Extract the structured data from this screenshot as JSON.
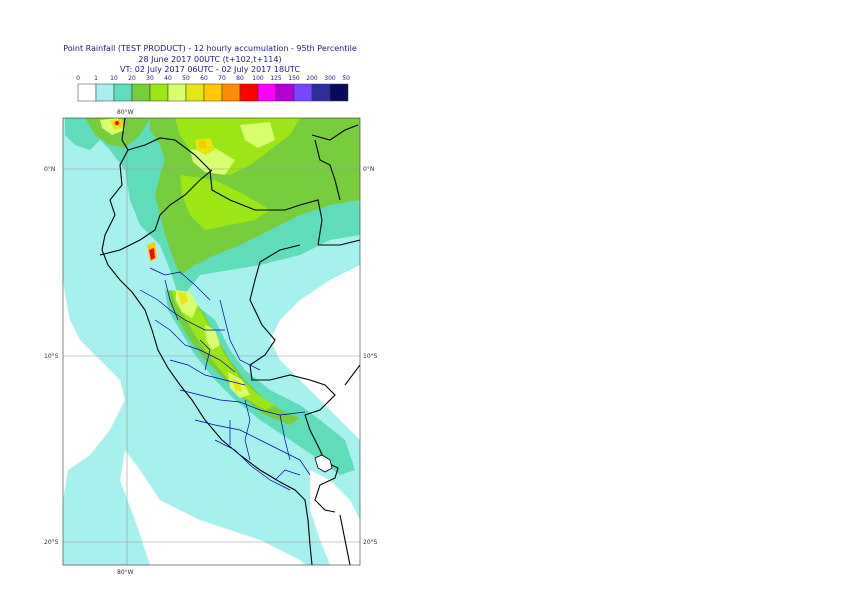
{
  "title": {
    "line1": "Point Rainfall (TEST PRODUCT) - 12 hourly accumulation - 95th Percentile",
    "line2": "28 June 2017 00UTC (t+102,t+114)",
    "line3": "VT: 02 July 2017 06UTC - 02 July 2017 18UTC"
  },
  "legend": {
    "thresholds": [
      "0",
      "1",
      "10",
      "20",
      "30",
      "40",
      "50",
      "60",
      "70",
      "80",
      "100",
      "125",
      "150",
      "200",
      "300",
      "500"
    ],
    "colors": [
      "#ffffff",
      "#a6f0ee",
      "#5fdcb9",
      "#78cd3c",
      "#9be614",
      "#d7ff6e",
      "#e6e614",
      "#ffc800",
      "#ff8c00",
      "#ff0000",
      "#ff00ff",
      "#b400d2",
      "#7846ff",
      "#2d2da0",
      "#0a0a5a"
    ]
  },
  "axes": {
    "lon_top": "80°W",
    "lon_bottom": "80°W",
    "lat_left": [
      "0°N",
      "10°S",
      "20°S"
    ],
    "lat_right": [
      "0°N",
      "10°S",
      "20°S"
    ]
  }
}
